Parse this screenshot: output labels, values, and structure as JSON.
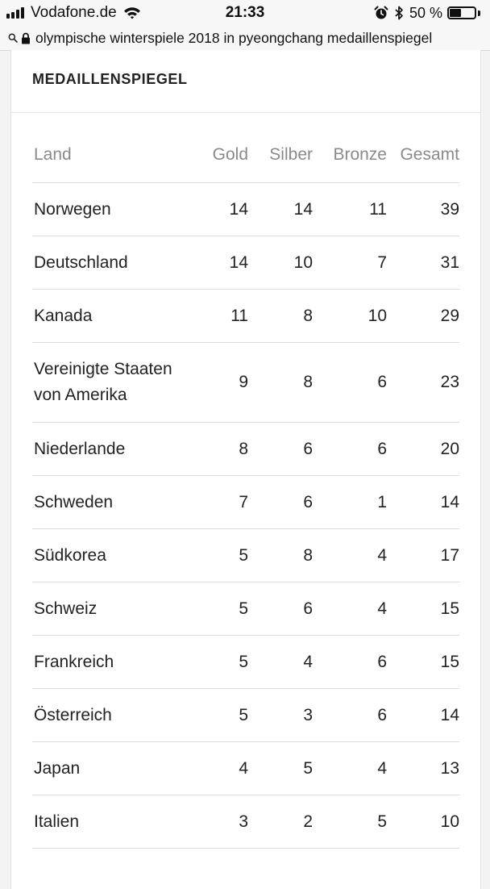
{
  "status_bar": {
    "carrier": "Vodafone.de",
    "time": "21:33",
    "battery_percent": "50 %",
    "battery_level": 0.5,
    "icons": [
      "signal-icon",
      "wifi-icon",
      "alarm-icon",
      "bluetooth-icon",
      "battery-icon"
    ]
  },
  "url_bar": {
    "text": "olympische winterspiele 2018 in pyeongchang medaillenspiegel"
  },
  "card": {
    "title": "MEDAILLENSPIEGEL"
  },
  "table": {
    "headers": {
      "land": "Land",
      "gold": "Gold",
      "silber": "Silber",
      "bronze": "Bronze",
      "gesamt": "Gesamt"
    },
    "rows": [
      {
        "land": "Norwegen",
        "gold": "14",
        "silber": "14",
        "bronze": "11",
        "gesamt": "39"
      },
      {
        "land": "Deutschland",
        "gold": "14",
        "silber": "10",
        "bronze": "7",
        "gesamt": "31"
      },
      {
        "land": "Kanada",
        "gold": "11",
        "silber": "8",
        "bronze": "10",
        "gesamt": "29"
      },
      {
        "land": "Vereinigte Staaten von Amerika",
        "gold": "9",
        "silber": "8",
        "bronze": "6",
        "gesamt": "23"
      },
      {
        "land": "Niederlande",
        "gold": "8",
        "silber": "6",
        "bronze": "6",
        "gesamt": "20"
      },
      {
        "land": "Schweden",
        "gold": "7",
        "silber": "6",
        "bronze": "1",
        "gesamt": "14"
      },
      {
        "land": "Südkorea",
        "gold": "5",
        "silber": "8",
        "bronze": "4",
        "gesamt": "17"
      },
      {
        "land": "Schweiz",
        "gold": "5",
        "silber": "6",
        "bronze": "4",
        "gesamt": "15"
      },
      {
        "land": "Frankreich",
        "gold": "5",
        "silber": "4",
        "bronze": "6",
        "gesamt": "15"
      },
      {
        "land": "Österreich",
        "gold": "5",
        "silber": "3",
        "bronze": "6",
        "gesamt": "14"
      },
      {
        "land": "Japan",
        "gold": "4",
        "silber": "5",
        "bronze": "4",
        "gesamt": "13"
      },
      {
        "land": "Italien",
        "gold": "3",
        "silber": "2",
        "bronze": "5",
        "gesamt": "10"
      }
    ]
  }
}
